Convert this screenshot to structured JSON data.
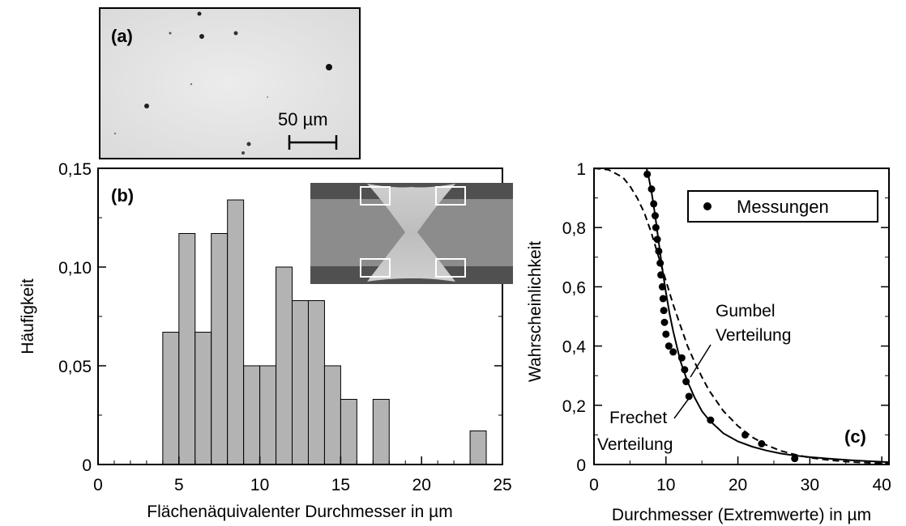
{
  "panel_a": {
    "label": "(a)",
    "scale_bar_text": "50 µm"
  },
  "chart_data": [
    {
      "type": "bar",
      "panel_label": "(b)",
      "title": "",
      "xlabel": "Flächenäquivalenter Durchmesser in µm",
      "ylabel": "Häufigkeit",
      "xlim": [
        0,
        25
      ],
      "ylim": [
        0,
        0.15
      ],
      "x_ticks": [
        0,
        5,
        10,
        15,
        20,
        25
      ],
      "y_ticks": [
        0,
        0.05,
        0.1,
        0.15
      ],
      "x_tick_labels": [
        "0",
        "5",
        "10",
        "15",
        "20",
        "25"
      ],
      "y_tick_labels": [
        "0",
        "0,05",
        "0,10",
        "0,15"
      ],
      "bin_width": 1,
      "bins": [
        {
          "x0": 4,
          "value": 0.067
        },
        {
          "x0": 5,
          "value": 0.117
        },
        {
          "x0": 6,
          "value": 0.067
        },
        {
          "x0": 7,
          "value": 0.117
        },
        {
          "x0": 8,
          "value": 0.134
        },
        {
          "x0": 9,
          "value": 0.05
        },
        {
          "x0": 10,
          "value": 0.05
        },
        {
          "x0": 11,
          "value": 0.1
        },
        {
          "x0": 12,
          "value": 0.083
        },
        {
          "x0": 13,
          "value": 0.083
        },
        {
          "x0": 14,
          "value": 0.05
        },
        {
          "x0": 15,
          "value": 0.033
        },
        {
          "x0": 17,
          "value": 0.033
        },
        {
          "x0": 23,
          "value": 0.017
        }
      ],
      "bar_color": "#b3b3b3",
      "grid": false
    },
    {
      "type": "line",
      "panel_label": "(c)",
      "title": "",
      "xlabel": "Durchmesser (Extremwerte) in µm",
      "ylabel": "Wahrscheinlichkeit",
      "xlim": [
        0,
        41
      ],
      "ylim": [
        0,
        1
      ],
      "x_ticks": [
        0,
        10,
        20,
        30,
        40
      ],
      "y_ticks": [
        0,
        0.2,
        0.4,
        0.6,
        0.8,
        1
      ],
      "x_tick_labels": [
        "0",
        "10",
        "20",
        "30",
        "40"
      ],
      "y_tick_labels": [
        "0",
        "0,2",
        "0,4",
        "0,6",
        "0,8",
        "1"
      ],
      "legend": {
        "entries": [
          "Messungen"
        ],
        "position": "top-right"
      },
      "series": [
        {
          "name": "Messungen",
          "style": "markers",
          "x": [
            7.4,
            8.0,
            8.3,
            8.5,
            8.6,
            8.8,
            9.0,
            9.2,
            9.3,
            9.5,
            9.6,
            9.7,
            9.8,
            10.0,
            10.4,
            11.0,
            12.2,
            12.6,
            12.8,
            13.2,
            16.2,
            21.0,
            23.3,
            27.9
          ],
          "y": [
            0.98,
            0.93,
            0.88,
            0.84,
            0.8,
            0.76,
            0.72,
            0.68,
            0.64,
            0.6,
            0.56,
            0.52,
            0.48,
            0.44,
            0.4,
            0.38,
            0.36,
            0.32,
            0.28,
            0.23,
            0.15,
            0.1,
            0.07,
            0.02
          ]
        },
        {
          "name": "Gumbel Verteilung",
          "style": "dashed",
          "x": [
            0,
            2,
            4,
            5,
            6,
            7,
            8,
            9,
            10,
            11,
            12,
            13,
            14,
            15,
            16,
            18,
            20,
            22,
            24,
            26,
            28,
            30,
            33,
            36,
            41
          ],
          "y": [
            1.0,
            0.995,
            0.97,
            0.94,
            0.9,
            0.85,
            0.78,
            0.7,
            0.62,
            0.54,
            0.47,
            0.4,
            0.345,
            0.295,
            0.25,
            0.18,
            0.13,
            0.092,
            0.065,
            0.046,
            0.033,
            0.023,
            0.014,
            0.008,
            0.003
          ]
        },
        {
          "name": "Frechet Verteilung",
          "style": "solid",
          "x": [
            7.3,
            7.6,
            8.0,
            8.5,
            9.0,
            9.5,
            10.0,
            10.5,
            11.0,
            12.0,
            13.0,
            14.0,
            15.0,
            16.0,
            18.0,
            20.0,
            22.0,
            24.0,
            26.0,
            28.0,
            30.0,
            33.0,
            36.0,
            41.0
          ],
          "y": [
            1.0,
            0.97,
            0.92,
            0.84,
            0.75,
            0.66,
            0.58,
            0.51,
            0.45,
            0.35,
            0.28,
            0.225,
            0.18,
            0.15,
            0.105,
            0.078,
            0.06,
            0.047,
            0.037,
            0.03,
            0.025,
            0.019,
            0.014,
            0.008
          ]
        }
      ],
      "annotations": {
        "gumbel": [
          "Gumbel",
          "Verteilung"
        ],
        "frechet": [
          "Frechet",
          "Verteilung"
        ]
      },
      "grid": false
    }
  ]
}
